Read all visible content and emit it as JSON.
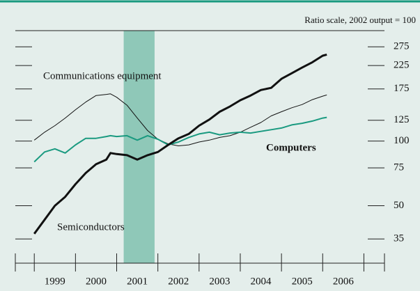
{
  "chart_data": {
    "type": "line",
    "subtitle": "Ratio scale, 2002 output = 100",
    "log_scale": true,
    "x": [
      1999.0,
      1999.25,
      1999.5,
      1999.75,
      2000.0,
      2000.25,
      2000.5,
      2000.75,
      2000.85,
      2001.0,
      2001.25,
      2001.5,
      2001.75,
      2002.0,
      2002.25,
      2002.5,
      2002.75,
      2003.0,
      2003.25,
      2003.5,
      2003.75,
      2004.0,
      2004.25,
      2004.5,
      2004.75,
      2005.0,
      2005.25,
      2005.5,
      2005.75,
      2006.0,
      2006.1
    ],
    "series": [
      {
        "name": "Communications equipment",
        "color": "#111111",
        "width": 1,
        "values": [
          101,
          110,
          118,
          128,
          140,
          152,
          163,
          165,
          166,
          160,
          147,
          128,
          112,
          102,
          97,
          95,
          96,
          99,
          101,
          104,
          106,
          110,
          116,
          122,
          131,
          137,
          143,
          148,
          156,
          162,
          164
        ]
      },
      {
        "name": "Computers",
        "color": "#1a9a80",
        "width": 2,
        "values": [
          80,
          89,
          92,
          88,
          96,
          103,
          103,
          105,
          106,
          105,
          106,
          101,
          106,
          102,
          96,
          99,
          104,
          108,
          110,
          107,
          109,
          110,
          109,
          111,
          113,
          115,
          119,
          121,
          124,
          128,
          129
        ]
      },
      {
        "name": "Semiconductors",
        "color": "#111111",
        "width": 3,
        "values": [
          37,
          43,
          50,
          55,
          63,
          71,
          78,
          82,
          88,
          87,
          86,
          82,
          86,
          89,
          96,
          103,
          108,
          118,
          126,
          137,
          145,
          155,
          163,
          173,
          177,
          195,
          207,
          220,
          233,
          250,
          253
        ]
      }
    ],
    "recession": [
      2001.17,
      2001.92
    ],
    "xlim": [
      1998.54,
      2007.5
    ],
    "xticks": [
      1998.54,
      1999,
      2000,
      2001,
      2002,
      2003,
      2004,
      2005,
      2006,
      2007,
      2007.5
    ],
    "x_labels": [
      {
        "value": 1999.5,
        "label": "1999"
      },
      {
        "value": 2000.5,
        "label": "2000"
      },
      {
        "value": 2001.5,
        "label": "2001"
      },
      {
        "value": 2002.5,
        "label": "2002"
      },
      {
        "value": 2003.5,
        "label": "2003"
      },
      {
        "value": 2004.5,
        "label": "2004"
      },
      {
        "value": 2005.5,
        "label": "2005"
      },
      {
        "value": 2006.5,
        "label": "2006"
      }
    ],
    "ylim": [
      27,
      327
    ],
    "yticks": [
      35,
      50,
      75,
      100,
      125,
      175,
      225,
      275
    ]
  }
}
